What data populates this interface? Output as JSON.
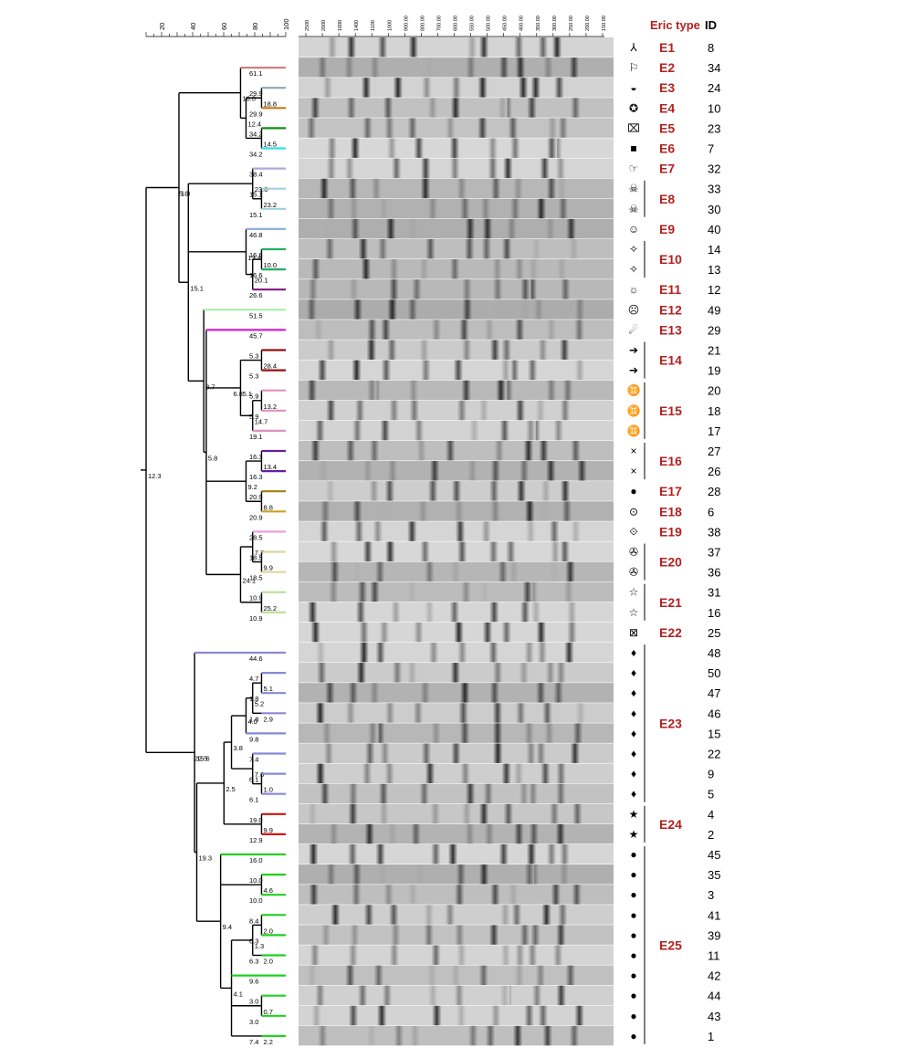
{
  "headers": {
    "eric_type": "Eric type",
    "id": "ID"
  },
  "scale": {
    "ticks": [
      "20",
      "40",
      "60",
      "80",
      "100"
    ]
  },
  "marker_labels": [
    "2500",
    "2000",
    "1600",
    "1400",
    "1100",
    "1000",
    "900.00",
    "800.00",
    "700.00",
    "600.00",
    "550.00",
    "500.00",
    "450.00",
    "400.00",
    "350.00",
    "300.00",
    "250.00",
    "200.00",
    "150.00"
  ],
  "isolates": [
    {
      "id": "8",
      "symbol": "⅄",
      "color": "#1a8a8a"
    },
    {
      "id": "34",
      "symbol": "⚐",
      "color": "#d08080"
    },
    {
      "id": "24",
      "symbol": "◒",
      "color": "#8faaaa"
    },
    {
      "id": "10",
      "symbol": "✪",
      "color": "#c87a10"
    },
    {
      "id": "23",
      "symbol": "⌧",
      "color": "#109010"
    },
    {
      "id": "7",
      "symbol": "■",
      "color": "#30e0e0"
    },
    {
      "id": "32",
      "symbol": "☞",
      "color": "#b0a8d8"
    },
    {
      "id": "33",
      "symbol": "☠",
      "color": "#a0d0e0"
    },
    {
      "id": "30",
      "symbol": "☠",
      "color": "#a0d0e0"
    },
    {
      "id": "40",
      "symbol": "☺",
      "color": "#90b0d8"
    },
    {
      "id": "14",
      "symbol": "✧",
      "color": "#20b060"
    },
    {
      "id": "13",
      "symbol": "✧",
      "color": "#20b060"
    },
    {
      "id": "12",
      "symbol": "☼",
      "color": "#801880"
    },
    {
      "id": "49",
      "symbol": "☹",
      "color": "#a8f0a8"
    },
    {
      "id": "29",
      "symbol": "☄",
      "color": "#d020d0"
    },
    {
      "id": "21",
      "symbol": "➔",
      "color": "#901010"
    },
    {
      "id": "19",
      "symbol": "➔",
      "color": "#901010"
    },
    {
      "id": "20",
      "symbol": "♊",
      "color": "#e090c0"
    },
    {
      "id": "18",
      "symbol": "♊",
      "color": "#e090c0"
    },
    {
      "id": "17",
      "symbol": "♊",
      "color": "#e090c0"
    },
    {
      "id": "27",
      "symbol": "×",
      "color": "#6020a0"
    },
    {
      "id": "26",
      "symbol": "×",
      "color": "#6020a0"
    },
    {
      "id": "28",
      "symbol": "●",
      "color": "#a08010"
    },
    {
      "id": "6",
      "symbol": "⊙",
      "color": "#d0a020"
    },
    {
      "id": "38",
      "symbol": "⟐",
      "color": "#e8a0d8"
    },
    {
      "id": "37",
      "symbol": "✇",
      "color": "#d8d8a0"
    },
    {
      "id": "36",
      "symbol": "✇",
      "color": "#d8d8a0"
    },
    {
      "id": "31",
      "symbol": "☆",
      "color": "#b8e090"
    },
    {
      "id": "16",
      "symbol": "☆",
      "color": "#b8e090"
    },
    {
      "id": "25",
      "symbol": "⊠",
      "color": "#101060"
    },
    {
      "id": "48",
      "symbol": "♦",
      "color": "#8888d8"
    },
    {
      "id": "50",
      "symbol": "♦",
      "color": "#8888d8"
    },
    {
      "id": "47",
      "symbol": "♦",
      "color": "#8888d8"
    },
    {
      "id": "46",
      "symbol": "♦",
      "color": "#8888d8"
    },
    {
      "id": "15",
      "symbol": "♦",
      "color": "#8888d8"
    },
    {
      "id": "22",
      "symbol": "♦",
      "color": "#8888d8"
    },
    {
      "id": "9",
      "symbol": "♦",
      "color": "#8888d8"
    },
    {
      "id": "5",
      "symbol": "♦",
      "color": "#8888d8"
    },
    {
      "id": "4",
      "symbol": "★",
      "color": "#d01010"
    },
    {
      "id": "2",
      "symbol": "★",
      "color": "#d01010"
    },
    {
      "id": "45",
      "symbol": "●",
      "color": "#20d020"
    },
    {
      "id": "35",
      "symbol": "●",
      "color": "#20d020"
    },
    {
      "id": "3",
      "symbol": "●",
      "color": "#20d020"
    },
    {
      "id": "41",
      "symbol": "●",
      "color": "#20d020"
    },
    {
      "id": "39",
      "symbol": "●",
      "color": "#20d020"
    },
    {
      "id": "11",
      "symbol": "●",
      "color": "#20d020"
    },
    {
      "id": "42",
      "symbol": "●",
      "color": "#20d020"
    },
    {
      "id": "44",
      "symbol": "●",
      "color": "#20d020"
    },
    {
      "id": "43",
      "symbol": "●",
      "color": "#20d020"
    },
    {
      "id": "1",
      "symbol": "●",
      "color": "#20d020"
    }
  ],
  "eric_types": [
    {
      "label": "E1",
      "first": 0,
      "last": 0
    },
    {
      "label": "E2",
      "first": 1,
      "last": 1
    },
    {
      "label": "E3",
      "first": 2,
      "last": 2
    },
    {
      "label": "E4",
      "first": 3,
      "last": 3
    },
    {
      "label": "E5",
      "first": 4,
      "last": 4
    },
    {
      "label": "E6",
      "first": 5,
      "last": 5
    },
    {
      "label": "E7",
      "first": 6,
      "last": 6
    },
    {
      "label": "E8",
      "first": 7,
      "last": 8
    },
    {
      "label": "E9",
      "first": 9,
      "last": 9
    },
    {
      "label": "E10",
      "first": 10,
      "last": 11
    },
    {
      "label": "E11",
      "first": 12,
      "last": 12
    },
    {
      "label": "E12",
      "first": 13,
      "last": 13
    },
    {
      "label": "E13",
      "first": 14,
      "last": 14
    },
    {
      "label": "E14",
      "first": 15,
      "last": 16
    },
    {
      "label": "E15",
      "first": 17,
      "last": 19
    },
    {
      "label": "E16",
      "first": 20,
      "last": 21
    },
    {
      "label": "E17",
      "first": 22,
      "last": 22
    },
    {
      "label": "E18",
      "first": 23,
      "last": 23
    },
    {
      "label": "E19",
      "first": 24,
      "last": 24
    },
    {
      "label": "E20",
      "first": 25,
      "last": 26
    },
    {
      "label": "E21",
      "first": 27,
      "last": 28
    },
    {
      "label": "E22",
      "first": 29,
      "last": 29
    },
    {
      "label": "E23",
      "first": 30,
      "last": 37
    },
    {
      "label": "E24",
      "first": 38,
      "last": 39
    },
    {
      "label": "E25",
      "first": 40,
      "last": 49
    }
  ],
  "tree": [
    {
      "a": 0,
      "b": 49,
      "sim": 12.3
    },
    {
      "a": 0,
      "b": 28,
      "sim": 5.6
    },
    {
      "a": 1,
      "b": 28,
      "sim": 1.3
    },
    {
      "a": 1,
      "b": 5,
      "sim": 16.0
    },
    {
      "a": 1,
      "b": 1,
      "sim": 61.1
    },
    {
      "a": 2,
      "b": 5,
      "sim": 12.4
    },
    {
      "a": 2,
      "b": 3,
      "sim": 18.8
    },
    {
      "a": 2,
      "b": 2,
      "sim": 29.9
    },
    {
      "a": 3,
      "b": 3,
      "sim": 29.9
    },
    {
      "a": 4,
      "b": 5,
      "sim": 14.5
    },
    {
      "a": 4,
      "b": 4,
      "sim": 34.2
    },
    {
      "a": 5,
      "b": 5,
      "sim": 34.2
    },
    {
      "a": 6,
      "b": 28,
      "sim": 15.1
    },
    {
      "a": 6,
      "b": 8,
      "sim": 23.6
    },
    {
      "a": 6,
      "b": 6,
      "sim": 38.4
    },
    {
      "a": 7,
      "b": 8,
      "sim": 23.2
    },
    {
      "a": 7,
      "b": 7,
      "sim": 15.1
    },
    {
      "a": 8,
      "b": 8,
      "sim": 15.1
    },
    {
      "a": 9,
      "b": 12,
      "sim": 13.4
    },
    {
      "a": 9,
      "b": 9,
      "sim": 46.8
    },
    {
      "a": 10,
      "b": 12,
      "sim": 20.1
    },
    {
      "a": 10,
      "b": 11,
      "sim": 10.0
    },
    {
      "a": 10,
      "b": 10,
      "sim": 16.6
    },
    {
      "a": 11,
      "b": 11,
      "sim": 16.6
    },
    {
      "a": 12,
      "b": 12,
      "sim": 26.6
    },
    {
      "a": 13,
      "b": 28,
      "sim": 8.7
    },
    {
      "a": 13,
      "b": 13,
      "sim": 51.5
    },
    {
      "a": 14,
      "b": 28,
      "sim": 5.8
    },
    {
      "a": 14,
      "b": 14,
      "sim": 45.7
    },
    {
      "a": 15,
      "b": 19,
      "sim": 5.1
    },
    {
      "a": 15,
      "b": 16,
      "sim": 28.4
    },
    {
      "a": 15,
      "b": 15,
      "sim": 5.3
    },
    {
      "a": 16,
      "b": 16,
      "sim": 5.3
    },
    {
      "a": 17,
      "b": 19,
      "sim": 14.7
    },
    {
      "a": 17,
      "b": 18,
      "sim": 13.2
    },
    {
      "a": 17,
      "b": 17,
      "sim": 5.9
    },
    {
      "a": 18,
      "b": 18,
      "sim": 5.9
    },
    {
      "a": 19,
      "b": 19,
      "sim": 19.1
    },
    {
      "a": 15,
      "b": 21,
      "sim": 6.8
    },
    {
      "a": 20,
      "b": 23,
      "sim": 9.2
    },
    {
      "a": 20,
      "b": 21,
      "sim": 13.4
    },
    {
      "a": 20,
      "b": 20,
      "sim": 16.3
    },
    {
      "a": 21,
      "b": 21,
      "sim": 16.3
    },
    {
      "a": 22,
      "b": 23,
      "sim": 8.8
    },
    {
      "a": 22,
      "b": 22,
      "sim": 20.9
    },
    {
      "a": 23,
      "b": 23,
      "sim": 20.9
    },
    {
      "a": 29,
      "b": 49,
      "sim": 22.5
    },
    {
      "a": 24,
      "b": 28,
      "sim": 24.1
    },
    {
      "a": 24,
      "b": 26,
      "sim": 7.7
    },
    {
      "a": 24,
      "b": 24,
      "sim": 28.5
    },
    {
      "a": 25,
      "b": 26,
      "sim": 9.9
    },
    {
      "a": 25,
      "b": 25,
      "sim": 18.5
    },
    {
      "a": 26,
      "b": 26,
      "sim": 18.5
    },
    {
      "a": 27,
      "b": 28,
      "sim": 25.2
    },
    {
      "a": 27,
      "b": 27,
      "sim": 10.9
    },
    {
      "a": 28,
      "b": 28,
      "sim": 10.9
    },
    {
      "a": 30,
      "b": 49,
      "sim": 15.6
    },
    {
      "a": 30,
      "b": 30,
      "sim": 44.6
    },
    {
      "a": 31,
      "b": 49,
      "sim": 19.3
    },
    {
      "a": 31,
      "b": 39,
      "sim": 2.5
    },
    {
      "a": 31,
      "b": 37,
      "sim": 3.8
    },
    {
      "a": 31,
      "b": 34,
      "sim": 4.0
    },
    {
      "a": 31,
      "b": 33,
      "sim": 5.2
    },
    {
      "a": 31,
      "b": 32,
      "sim": 5.1
    },
    {
      "a": 31,
      "b": 31,
      "sim": 4.7
    },
    {
      "a": 32,
      "b": 33,
      "sim": 2.9
    },
    {
      "a": 32,
      "b": 32,
      "sim": 1.8
    },
    {
      "a": 33,
      "b": 33,
      "sim": 1.8
    },
    {
      "a": 34,
      "b": 34,
      "sim": 9.8
    },
    {
      "a": 35,
      "b": 37,
      "sim": 7.6
    },
    {
      "a": 35,
      "b": 35,
      "sim": 7.4
    },
    {
      "a": 36,
      "b": 37,
      "sim": 1.0
    },
    {
      "a": 36,
      "b": 36,
      "sim": 6.1
    },
    {
      "a": 37,
      "b": 37,
      "sim": 6.1
    },
    {
      "a": 38,
      "b": 38,
      "sim": 19.0
    },
    {
      "a": 38,
      "b": 39,
      "sim": 9.9
    },
    {
      "a": 39,
      "b": 39,
      "sim": 12.9
    },
    {
      "a": 40,
      "b": 49,
      "sim": 9.4
    },
    {
      "a": 40,
      "b": 40,
      "sim": 16.0
    },
    {
      "a": 41,
      "b": 42,
      "sim": 4.6
    },
    {
      "a": 41,
      "b": 41,
      "sim": 10.0
    },
    {
      "a": 42,
      "b": 42,
      "sim": 10.0
    },
    {
      "a": 43,
      "b": 49,
      "sim": 4.1
    },
    {
      "a": 43,
      "b": 45,
      "sim": 1.3
    },
    {
      "a": 43,
      "b": 44,
      "sim": 2.0
    },
    {
      "a": 43,
      "b": 43,
      "sim": 8.4
    },
    {
      "a": 44,
      "b": 44,
      "sim": 6.3
    },
    {
      "a": 44,
      "b": 45,
      "sim": 2.0
    },
    {
      "a": 45,
      "b": 45,
      "sim": 6.3
    },
    {
      "a": 46,
      "b": 46,
      "sim": 9.6
    },
    {
      "a": 47,
      "b": 48,
      "sim": 0.7
    },
    {
      "a": 47,
      "b": 47,
      "sim": 3.0
    },
    {
      "a": 48,
      "b": 48,
      "sim": 3.0
    },
    {
      "a": 48,
      "b": 49,
      "sim": 2.2
    },
    {
      "a": 49,
      "b": 49,
      "sim": 7.4
    }
  ]
}
